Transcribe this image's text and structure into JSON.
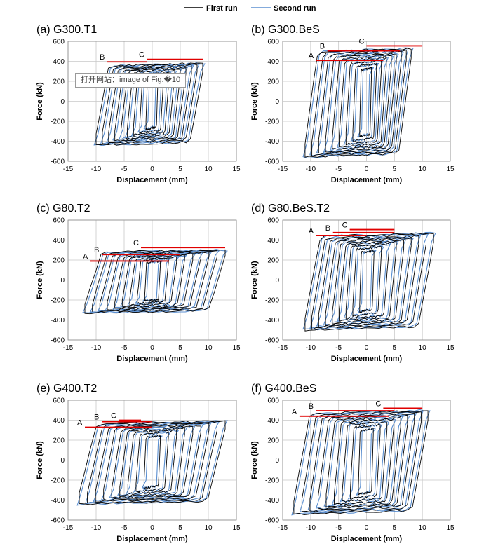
{
  "legend": {
    "first_run": "First run",
    "second_run": "Second run"
  },
  "colors": {
    "first_run": "#000000",
    "second_run": "#5b8fd0",
    "marker_line": "#e00000",
    "grid": "#c8c8c8"
  },
  "tooltip": "打开网站：image of Fig.�10",
  "chart_data": [
    {
      "type": "line",
      "title": "(a) G300.T1",
      "xlabel": "Displacement (mm)",
      "ylabel": "Force (kN)",
      "xlim": [
        -15,
        15
      ],
      "ylim": [
        -600,
        600
      ],
      "xticks": [
        -15,
        -10,
        -5,
        0,
        5,
        10,
        15
      ],
      "yticks": [
        -600,
        -400,
        -200,
        0,
        200,
        400,
        600
      ],
      "grid": true,
      "disp_range": [
        -10,
        9
      ],
      "force_pos": 380,
      "force_neg": -440,
      "markers": [
        {
          "label": "B",
          "y": 395,
          "x0": -8,
          "x1": -1
        },
        {
          "label": "C",
          "y": 420,
          "x0": -1,
          "x1": 9
        }
      ]
    },
    {
      "type": "line",
      "title": "(b) G300.BeS",
      "xlabel": "Displacement (mm)",
      "ylabel": "Force (kN)",
      "xlim": [
        -15,
        15
      ],
      "ylim": [
        -600,
        600
      ],
      "xticks": [
        -15,
        -10,
        -5,
        0,
        5,
        10,
        15
      ],
      "yticks": [
        -600,
        -400,
        -200,
        0,
        200,
        400,
        600
      ],
      "grid": true,
      "disp_range": [
        -11,
        8
      ],
      "force_pos": 530,
      "force_neg": -560,
      "markers": [
        {
          "label": "A",
          "y": 410,
          "x0": -9,
          "x1": 3
        },
        {
          "label": "B",
          "y": 505,
          "x0": -7,
          "x1": 6
        },
        {
          "label": "C",
          "y": 555,
          "x0": 0,
          "x1": 10
        }
      ]
    },
    {
      "type": "line",
      "title": "(c) G80.T2",
      "xlabel": "Displacement (mm)",
      "ylabel": "Force (kN)",
      "xlim": [
        -15,
        15
      ],
      "ylim": [
        -600,
        600
      ],
      "xticks": [
        -15,
        -10,
        -5,
        0,
        5,
        10,
        15
      ],
      "yticks": [
        -600,
        -400,
        -200,
        0,
        200,
        400,
        600
      ],
      "grid": true,
      "disp_range": [
        -12,
        13
      ],
      "force_pos": 300,
      "force_neg": -330,
      "markers": [
        {
          "label": "A",
          "y": 190,
          "x0": -11,
          "x1": 3
        },
        {
          "label": "B",
          "y": 255,
          "x0": -9,
          "x1": 5
        },
        {
          "label": "C",
          "y": 325,
          "x0": -2,
          "x1": 13
        }
      ]
    },
    {
      "type": "line",
      "title": "(d) G80.BeS.T2",
      "xlabel": "Displacement (mm)",
      "ylabel": "Force (kN)",
      "xlim": [
        -15,
        15
      ],
      "ylim": [
        -600,
        600
      ],
      "xticks": [
        -15,
        -10,
        -5,
        0,
        5,
        10,
        15
      ],
      "yticks": [
        -600,
        -400,
        -200,
        0,
        200,
        400,
        600
      ],
      "grid": true,
      "disp_range": [
        -11,
        12
      ],
      "force_pos": 470,
      "force_neg": -500,
      "markers": [
        {
          "label": "A",
          "y": 445,
          "x0": -9,
          "x1": 0
        },
        {
          "label": "B",
          "y": 475,
          "x0": -6,
          "x1": 5
        },
        {
          "label": "C",
          "y": 505,
          "x0": -3,
          "x1": 5
        }
      ]
    },
    {
      "type": "line",
      "title": "(e) G400.T2",
      "xlabel": "Displacement (mm)",
      "ylabel": "Force (kN)",
      "xlim": [
        -15,
        15
      ],
      "ylim": [
        -600,
        600
      ],
      "xticks": [
        -15,
        -10,
        -5,
        0,
        5,
        10,
        15
      ],
      "yticks": [
        -600,
        -400,
        -200,
        0,
        200,
        400,
        600
      ],
      "grid": true,
      "disp_range": [
        -13,
        13
      ],
      "force_pos": 390,
      "force_neg": -440,
      "markers": [
        {
          "label": "A",
          "y": 330,
          "x0": -12,
          "x1": 0
        },
        {
          "label": "B",
          "y": 385,
          "x0": -9,
          "x1": 0
        },
        {
          "label": "C",
          "y": 400,
          "x0": -6,
          "x1": -2
        }
      ]
    },
    {
      "type": "line",
      "title": "(f) G400.BeS",
      "xlabel": "Displacement (mm)",
      "ylabel": "Force (kN)",
      "xlim": [
        -15,
        15
      ],
      "ylim": [
        -600,
        600
      ],
      "xticks": [
        -15,
        -10,
        -5,
        0,
        5,
        10,
        15
      ],
      "yticks": [
        -600,
        -400,
        -200,
        0,
        200,
        400,
        600
      ],
      "grid": true,
      "disp_range": [
        -13,
        11
      ],
      "force_pos": 500,
      "force_neg": -540,
      "markers": [
        {
          "label": "A",
          "y": 440,
          "x0": -12,
          "x1": 4
        },
        {
          "label": "B",
          "y": 495,
          "x0": -9,
          "x1": 5
        },
        {
          "label": "C",
          "y": 520,
          "x0": 3,
          "x1": 10
        }
      ]
    }
  ]
}
